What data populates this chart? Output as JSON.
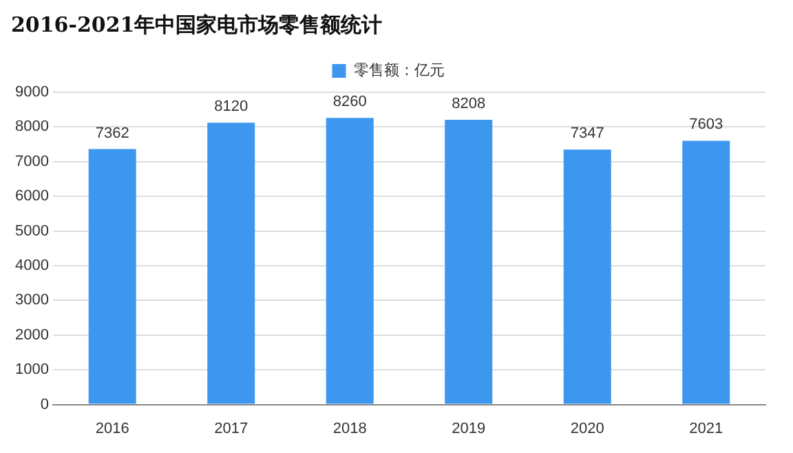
{
  "chart_data": {
    "type": "bar",
    "title": "2016-2021年中国家电市场零售额统计",
    "categories": [
      "2016",
      "2017",
      "2018",
      "2019",
      "2020",
      "2021"
    ],
    "series": [
      {
        "name": "零售额：亿元",
        "color": "#3d97ef",
        "values": [
          7362,
          8120,
          8260,
          8208,
          7347,
          7603
        ]
      }
    ],
    "ylim": [
      0,
      9000
    ],
    "yticks": [
      0,
      1000,
      2000,
      3000,
      4000,
      5000,
      6000,
      7000,
      8000,
      9000
    ],
    "grid": "y",
    "legend": "top",
    "data_labels": true
  }
}
